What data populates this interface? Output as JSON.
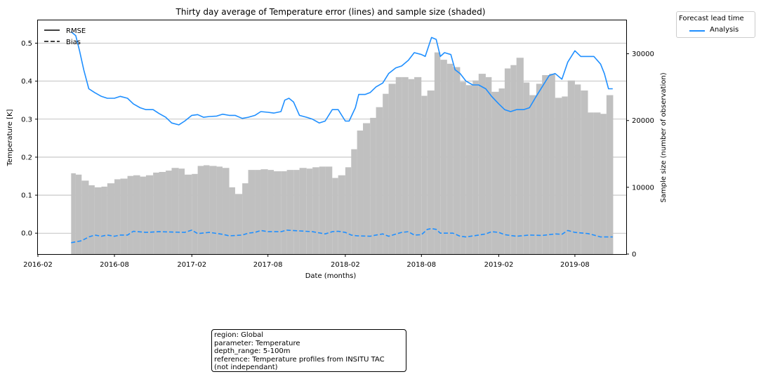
{
  "chart_data": {
    "type": "line",
    "title": "Thirty day average of Temperature error (lines) and sample size (shaded)",
    "xlabel": "Date (months)",
    "ylabel": "Temperature [K]",
    "y2label": "Sample size (number of observation)",
    "x_range": [
      "2016-02-01",
      "2019-12-01"
    ],
    "ylim": [
      -0.055,
      0.56
    ],
    "y2lim": [
      0,
      35000
    ],
    "x_ticks": [
      "2016-02",
      "2016-08",
      "2017-02",
      "2017-08",
      "2018-02",
      "2018-08",
      "2019-02",
      "2019-08"
    ],
    "y_ticks": [
      "0.0",
      "0.1",
      "0.2",
      "0.3",
      "0.4",
      "0.5"
    ],
    "y2_ticks": [
      "0",
      "10000",
      "20000",
      "30000"
    ],
    "grid": "horizontal",
    "style_legend": [
      {
        "label": "RMSE",
        "linestyle": "solid"
      },
      {
        "label": "Bias",
        "linestyle": "dashed"
      }
    ],
    "lead_legend": {
      "title": "Forecast lead time",
      "entries": [
        {
          "label": "Analysis",
          "color": "#1f8fff"
        }
      ]
    },
    "colors": {
      "line": "#1f8fff",
      "bars": "#c0c0c0",
      "grid": "#b0b0b0"
    },
    "series": [
      {
        "name": "RMSE",
        "style": "solid",
        "points": [
          [
            "2016-04-20",
            0.53
          ],
          [
            "2016-05-01",
            0.52
          ],
          [
            "2016-05-10",
            0.48
          ],
          [
            "2016-05-20",
            0.43
          ],
          [
            "2016-06-01",
            0.38
          ],
          [
            "2016-06-15",
            0.37
          ],
          [
            "2016-07-01",
            0.36
          ],
          [
            "2016-07-15",
            0.355
          ],
          [
            "2016-08-01",
            0.355
          ],
          [
            "2016-08-15",
            0.36
          ],
          [
            "2016-09-01",
            0.355
          ],
          [
            "2016-09-15",
            0.34
          ],
          [
            "2016-10-01",
            0.33
          ],
          [
            "2016-10-15",
            0.325
          ],
          [
            "2016-11-01",
            0.325
          ],
          [
            "2016-11-15",
            0.315
          ],
          [
            "2016-12-01",
            0.305
          ],
          [
            "2016-12-15",
            0.29
          ],
          [
            "2017-01-01",
            0.285
          ],
          [
            "2017-01-15",
            0.295
          ],
          [
            "2017-02-01",
            0.31
          ],
          [
            "2017-02-15",
            0.312
          ],
          [
            "2017-03-01",
            0.305
          ],
          [
            "2017-03-15",
            0.307
          ],
          [
            "2017-04-01",
            0.308
          ],
          [
            "2017-04-15",
            0.313
          ],
          [
            "2017-05-01",
            0.31
          ],
          [
            "2017-05-15",
            0.31
          ],
          [
            "2017-06-01",
            0.302
          ],
          [
            "2017-06-15",
            0.305
          ],
          [
            "2017-07-01",
            0.31
          ],
          [
            "2017-07-15",
            0.32
          ],
          [
            "2017-08-01",
            0.318
          ],
          [
            "2017-08-15",
            0.316
          ],
          [
            "2017-09-01",
            0.32
          ],
          [
            "2017-09-10",
            0.35
          ],
          [
            "2017-09-20",
            0.355
          ],
          [
            "2017-10-01",
            0.345
          ],
          [
            "2017-10-15",
            0.31
          ],
          [
            "2017-11-01",
            0.305
          ],
          [
            "2017-11-15",
            0.3
          ],
          [
            "2017-12-01",
            0.29
          ],
          [
            "2017-12-15",
            0.295
          ],
          [
            "2018-01-01",
            0.325
          ],
          [
            "2018-01-15",
            0.325
          ],
          [
            "2018-02-01",
            0.295
          ],
          [
            "2018-02-10",
            0.295
          ],
          [
            "2018-02-25",
            0.33
          ],
          [
            "2018-03-05",
            0.365
          ],
          [
            "2018-03-20",
            0.365
          ],
          [
            "2018-04-01",
            0.37
          ],
          [
            "2018-04-15",
            0.385
          ],
          [
            "2018-05-01",
            0.395
          ],
          [
            "2018-05-15",
            0.42
          ],
          [
            "2018-06-01",
            0.435
          ],
          [
            "2018-06-15",
            0.44
          ],
          [
            "2018-07-01",
            0.455
          ],
          [
            "2018-07-15",
            0.475
          ],
          [
            "2018-08-01",
            0.47
          ],
          [
            "2018-08-10",
            0.465
          ],
          [
            "2018-08-25",
            0.515
          ],
          [
            "2018-09-05",
            0.51
          ],
          [
            "2018-09-15",
            0.465
          ],
          [
            "2018-09-25",
            0.475
          ],
          [
            "2018-10-10",
            0.47
          ],
          [
            "2018-10-20",
            0.43
          ],
          [
            "2018-11-01",
            0.42
          ],
          [
            "2018-11-15",
            0.4
          ],
          [
            "2018-12-01",
            0.39
          ],
          [
            "2018-12-15",
            0.39
          ],
          [
            "2019-01-01",
            0.38
          ],
          [
            "2019-01-15",
            0.36
          ],
          [
            "2019-02-01",
            0.34
          ],
          [
            "2019-02-15",
            0.325
          ],
          [
            "2019-03-01",
            0.32
          ],
          [
            "2019-03-15",
            0.325
          ],
          [
            "2019-04-01",
            0.325
          ],
          [
            "2019-04-15",
            0.33
          ],
          [
            "2019-05-01",
            0.36
          ],
          [
            "2019-05-15",
            0.385
          ],
          [
            "2019-06-01",
            0.415
          ],
          [
            "2019-06-15",
            0.42
          ],
          [
            "2019-07-01",
            0.405
          ],
          [
            "2019-07-15",
            0.45
          ],
          [
            "2019-08-01",
            0.48
          ],
          [
            "2019-08-15",
            0.465
          ],
          [
            "2019-09-01",
            0.465
          ],
          [
            "2019-09-15",
            0.465
          ],
          [
            "2019-10-01",
            0.445
          ],
          [
            "2019-10-10",
            0.42
          ],
          [
            "2019-10-20",
            0.38
          ],
          [
            "2019-10-30",
            0.38
          ]
        ]
      },
      {
        "name": "Bias",
        "style": "dashed",
        "points": [
          [
            "2016-04-20",
            -0.025
          ],
          [
            "2016-05-15",
            -0.02
          ],
          [
            "2016-06-01",
            -0.01
          ],
          [
            "2016-06-15",
            -0.005
          ],
          [
            "2016-07-01",
            -0.008
          ],
          [
            "2016-07-15",
            -0.005
          ],
          [
            "2016-08-01",
            -0.008
          ],
          [
            "2016-08-15",
            -0.005
          ],
          [
            "2016-09-01",
            -0.005
          ],
          [
            "2016-09-15",
            0.005
          ],
          [
            "2016-10-15",
            0.002
          ],
          [
            "2016-11-15",
            0.004
          ],
          [
            "2016-12-15",
            0.003
          ],
          [
            "2017-01-15",
            0.002
          ],
          [
            "2017-02-01",
            0.008
          ],
          [
            "2017-02-15",
            -0.001
          ],
          [
            "2017-03-15",
            0.002
          ],
          [
            "2017-04-15",
            -0.003
          ],
          [
            "2017-05-01",
            -0.007
          ],
          [
            "2017-06-01",
            -0.005
          ],
          [
            "2017-06-15",
            0.0
          ],
          [
            "2017-07-01",
            0.002
          ],
          [
            "2017-07-15",
            0.007
          ],
          [
            "2017-08-01",
            0.004
          ],
          [
            "2017-09-01",
            0.004
          ],
          [
            "2017-09-15",
            0.008
          ],
          [
            "2017-10-15",
            0.006
          ],
          [
            "2017-11-15",
            0.004
          ],
          [
            "2017-12-15",
            -0.002
          ],
          [
            "2018-01-01",
            0.004
          ],
          [
            "2018-01-15",
            0.005
          ],
          [
            "2018-02-01",
            0.002
          ],
          [
            "2018-02-15",
            -0.005
          ],
          [
            "2018-03-01",
            -0.007
          ],
          [
            "2018-04-01",
            -0.008
          ],
          [
            "2018-04-15",
            -0.005
          ],
          [
            "2018-05-01",
            -0.002
          ],
          [
            "2018-05-15",
            -0.008
          ],
          [
            "2018-06-15",
            0.002
          ],
          [
            "2018-07-01",
            0.004
          ],
          [
            "2018-07-15",
            -0.005
          ],
          [
            "2018-08-01",
            -0.004
          ],
          [
            "2018-08-15",
            0.01
          ],
          [
            "2018-08-25",
            0.012
          ],
          [
            "2018-09-05",
            0.01
          ],
          [
            "2018-09-15",
            0.0
          ],
          [
            "2018-10-15",
            0.0
          ],
          [
            "2018-11-01",
            -0.008
          ],
          [
            "2018-11-15",
            -0.01
          ],
          [
            "2018-12-15",
            -0.005
          ],
          [
            "2019-01-01",
            -0.002
          ],
          [
            "2019-01-15",
            0.004
          ],
          [
            "2019-02-01",
            0.002
          ],
          [
            "2019-02-15",
            -0.004
          ],
          [
            "2019-03-15",
            -0.008
          ],
          [
            "2019-04-15",
            -0.005
          ],
          [
            "2019-05-15",
            -0.006
          ],
          [
            "2019-06-15",
            -0.002
          ],
          [
            "2019-07-01",
            -0.003
          ],
          [
            "2019-07-15",
            0.007
          ],
          [
            "2019-08-01",
            0.002
          ],
          [
            "2019-09-01",
            -0.001
          ],
          [
            "2019-09-15",
            -0.005
          ],
          [
            "2019-10-01",
            -0.01
          ],
          [
            "2019-10-30",
            -0.01
          ]
        ]
      },
      {
        "name": "Sample size",
        "style": "bars",
        "points": [
          [
            "2016-04-20",
            12100
          ],
          [
            "2016-05-01",
            11900
          ],
          [
            "2016-05-15",
            11000
          ],
          [
            "2016-06-01",
            10300
          ],
          [
            "2016-06-15",
            10000
          ],
          [
            "2016-07-01",
            10100
          ],
          [
            "2016-07-15",
            10600
          ],
          [
            "2016-08-01",
            11200
          ],
          [
            "2016-08-15",
            11300
          ],
          [
            "2016-09-01",
            11700
          ],
          [
            "2016-09-15",
            11800
          ],
          [
            "2016-10-01",
            11600
          ],
          [
            "2016-10-15",
            11800
          ],
          [
            "2016-11-01",
            12200
          ],
          [
            "2016-11-15",
            12300
          ],
          [
            "2016-12-01",
            12500
          ],
          [
            "2016-12-15",
            12900
          ],
          [
            "2017-01-01",
            12800
          ],
          [
            "2017-01-15",
            11900
          ],
          [
            "2017-02-01",
            12000
          ],
          [
            "2017-02-15",
            13200
          ],
          [
            "2017-03-01",
            13300
          ],
          [
            "2017-03-15",
            13200
          ],
          [
            "2017-04-01",
            13100
          ],
          [
            "2017-04-15",
            12900
          ],
          [
            "2017-05-01",
            10000
          ],
          [
            "2017-05-15",
            9000
          ],
          [
            "2017-06-01",
            10600
          ],
          [
            "2017-06-15",
            12600
          ],
          [
            "2017-07-01",
            12600
          ],
          [
            "2017-07-15",
            12700
          ],
          [
            "2017-08-01",
            12600
          ],
          [
            "2017-08-15",
            12400
          ],
          [
            "2017-09-01",
            12400
          ],
          [
            "2017-09-15",
            12600
          ],
          [
            "2017-10-01",
            12600
          ],
          [
            "2017-10-15",
            12900
          ],
          [
            "2017-11-01",
            12800
          ],
          [
            "2017-11-15",
            13000
          ],
          [
            "2017-12-01",
            13100
          ],
          [
            "2017-12-15",
            13100
          ],
          [
            "2018-01-01",
            11400
          ],
          [
            "2018-01-15",
            11800
          ],
          [
            "2018-02-01",
            13000
          ],
          [
            "2018-02-15",
            15700
          ],
          [
            "2018-03-01",
            18500
          ],
          [
            "2018-03-15",
            19600
          ],
          [
            "2018-04-01",
            20400
          ],
          [
            "2018-04-15",
            22000
          ],
          [
            "2018-05-01",
            24000
          ],
          [
            "2018-05-15",
            25500
          ],
          [
            "2018-06-01",
            26500
          ],
          [
            "2018-06-15",
            26500
          ],
          [
            "2018-07-01",
            26200
          ],
          [
            "2018-07-15",
            26500
          ],
          [
            "2018-08-01",
            23700
          ],
          [
            "2018-08-15",
            24500
          ],
          [
            "2018-09-01",
            30200
          ],
          [
            "2018-09-15",
            29100
          ],
          [
            "2018-10-01",
            28500
          ],
          [
            "2018-10-15",
            28000
          ],
          [
            "2018-11-01",
            25800
          ],
          [
            "2018-11-15",
            25300
          ],
          [
            "2018-12-01",
            26000
          ],
          [
            "2018-12-15",
            27000
          ],
          [
            "2019-01-01",
            26500
          ],
          [
            "2019-01-15",
            24300
          ],
          [
            "2019-02-01",
            24800
          ],
          [
            "2019-02-15",
            27800
          ],
          [
            "2019-03-01",
            28300
          ],
          [
            "2019-03-15",
            29400
          ],
          [
            "2019-04-01",
            25700
          ],
          [
            "2019-04-15",
            23800
          ],
          [
            "2019-05-01",
            25500
          ],
          [
            "2019-05-15",
            26800
          ],
          [
            "2019-06-01",
            27000
          ],
          [
            "2019-06-15",
            23400
          ],
          [
            "2019-07-01",
            23600
          ],
          [
            "2019-07-15",
            26000
          ],
          [
            "2019-08-01",
            25400
          ],
          [
            "2019-08-15",
            24500
          ],
          [
            "2019-09-01",
            21200
          ],
          [
            "2019-09-15",
            21200
          ],
          [
            "2019-10-01",
            21000
          ],
          [
            "2019-10-15",
            23800
          ]
        ]
      }
    ],
    "info_box": [
      "region: Global",
      "parameter: Temperature",
      "depth_range: 5-100m",
      "reference: Temperature profiles from INSITU TAC",
      "(not independant)"
    ]
  }
}
